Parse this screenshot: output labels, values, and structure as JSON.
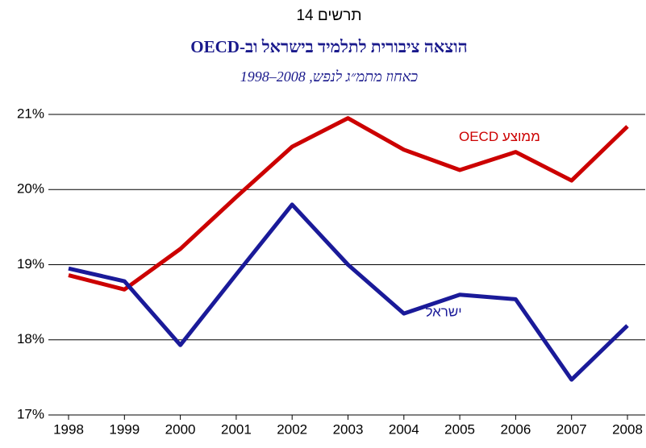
{
  "chart_data": {
    "type": "line",
    "title": "תרשים 14",
    "subtitle": "הוצאה ציבורית לתלמיד בישראל וב-OECD",
    "note": "כאחוז מתמ״ג לנפש, 2008–1998",
    "x": [
      1998,
      1999,
      2000,
      2001,
      2002,
      2003,
      2004,
      2005,
      2006,
      2007,
      2008
    ],
    "xlim": [
      1998,
      2008
    ],
    "xticks": [
      1998,
      1999,
      2000,
      2001,
      2002,
      2003,
      2004,
      2005,
      2006,
      2007,
      2008
    ],
    "ylim": [
      17,
      21
    ],
    "yticks": [
      {
        "value": 17,
        "label": "17%"
      },
      {
        "value": 18,
        "label": "18%"
      },
      {
        "value": 19,
        "label": "19%"
      },
      {
        "value": 20,
        "label": "20%"
      },
      {
        "value": 21,
        "label": "21%"
      }
    ],
    "grid": true,
    "series": [
      {
        "name": "ממוצע OECD",
        "color": "#cc0000",
        "values": [
          18.86,
          18.67,
          19.21,
          19.9,
          20.57,
          20.95,
          20.53,
          20.26,
          20.5,
          20.12,
          20.84
        ]
      },
      {
        "name": "ישראל",
        "color": "#1a1a99",
        "values": [
          18.95,
          18.78,
          17.93,
          18.87,
          19.8,
          19.0,
          18.35,
          18.6,
          18.54,
          17.47,
          18.19
        ]
      }
    ]
  }
}
